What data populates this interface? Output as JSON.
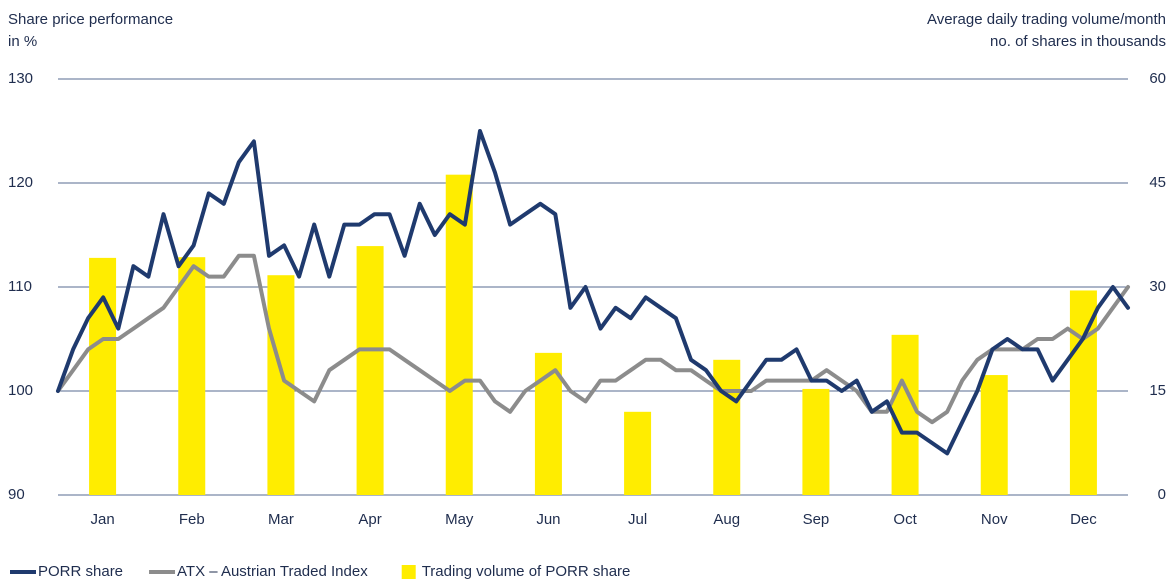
{
  "chart_data": [
    {
      "type": "line",
      "y_label": [
        "Share price performance",
        "in %"
      ],
      "ylim": [
        90,
        130
      ],
      "yticks": [
        90,
        100,
        110,
        120,
        130
      ],
      "grid": true,
      "series": [
        {
          "name": "PORR share",
          "color": "#1f3a6e",
          "values": [
            100,
            104,
            107,
            109,
            106,
            112,
            111,
            117,
            112,
            114,
            119,
            118,
            122,
            124,
            113,
            114,
            111,
            116,
            111,
            116,
            116,
            117,
            117,
            113,
            118,
            115,
            117,
            116,
            125,
            121,
            116,
            117,
            118,
            117,
            108,
            110,
            106,
            108,
            107,
            109,
            108,
            107,
            103,
            102,
            100,
            99,
            101,
            103,
            103,
            104,
            101,
            101,
            100,
            101,
            98,
            99,
            96,
            96,
            95,
            94,
            97,
            100,
            104,
            105,
            104,
            104,
            101,
            103,
            105,
            108,
            110,
            108
          ]
        },
        {
          "name": "ATX – Austrian Traded Index",
          "color": "#8c8c8c",
          "values": [
            100,
            102,
            104,
            105,
            105,
            106,
            107,
            108,
            110,
            112,
            111,
            111,
            113,
            113,
            106,
            101,
            100,
            99,
            102,
            103,
            104,
            104,
            104,
            103,
            102,
            101,
            100,
            101,
            101,
            99,
            98,
            100,
            101,
            102,
            100,
            99,
            101,
            101,
            102,
            103,
            103,
            102,
            102,
            101,
            100,
            100,
            100,
            101,
            101,
            101,
            101,
            102,
            101,
            100,
            98,
            98,
            101,
            98,
            97,
            98,
            101,
            103,
            104,
            104,
            104,
            105,
            105,
            106,
            105,
            106,
            108,
            110
          ]
        }
      ]
    },
    {
      "type": "bar",
      "y2_label": [
        "Average daily trading volume/month",
        "no. of shares in thousands"
      ],
      "categories": [
        "Jan",
        "Feb",
        "Mar",
        "Apr",
        "May",
        "Jun",
        "Jul",
        "Aug",
        "Sep",
        "Oct",
        "Nov",
        "Dec"
      ],
      "y2lim": [
        0,
        60
      ],
      "y2ticks": [
        0,
        15,
        30,
        45,
        60
      ],
      "series": [
        {
          "name": "Trading volume of PORR share",
          "color": "#ffed00",
          "axis": "y2",
          "values": [
            34.2,
            34.3,
            31.7,
            35.9,
            46.2,
            20.5,
            12.0,
            19.5,
            15.3,
            23.1,
            17.3,
            29.5
          ]
        }
      ]
    }
  ]
}
